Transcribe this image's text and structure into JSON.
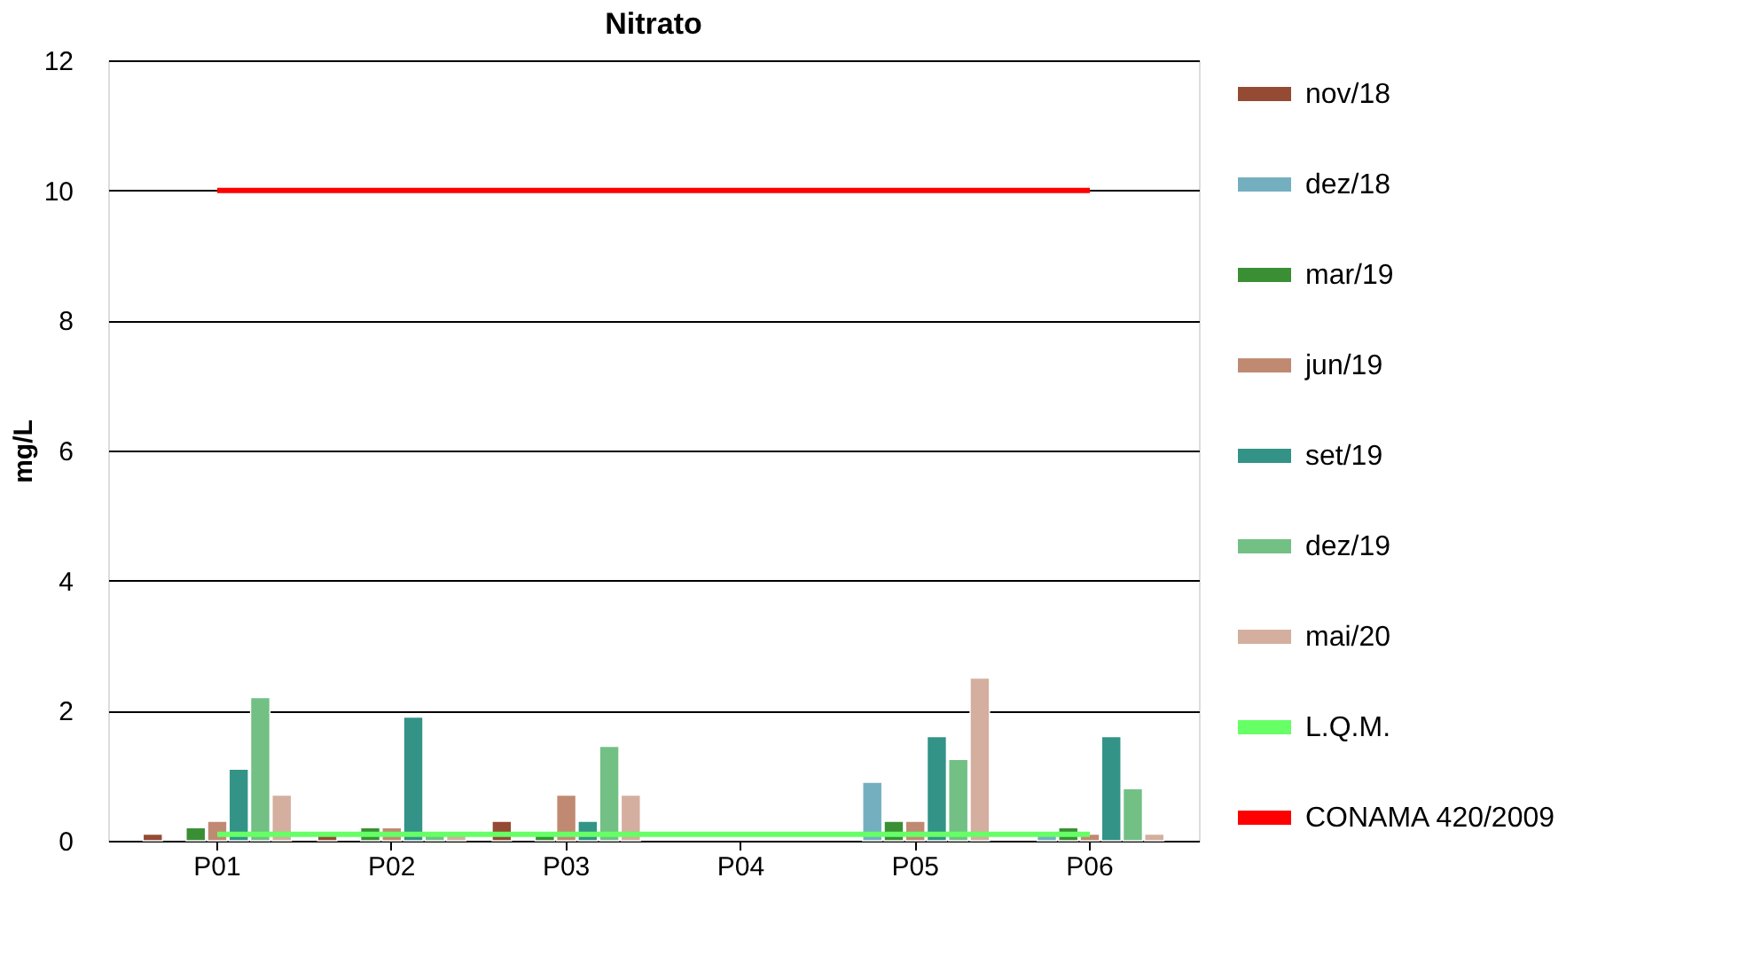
{
  "chart_data": {
    "type": "bar",
    "title": "Nitrato",
    "ylabel": "mg/L",
    "categories": [
      "P01",
      "P02",
      "P03",
      "P04",
      "P05",
      "P06"
    ],
    "series": [
      {
        "name": "nov/18",
        "color": "#954a33",
        "values": [
          0.1,
          0.1,
          0.3,
          null,
          null,
          null
        ]
      },
      {
        "name": "dez/18",
        "color": "#74afc0",
        "values": [
          null,
          null,
          null,
          null,
          0.9,
          0.1
        ]
      },
      {
        "name": "mar/19",
        "color": "#3a8f34",
        "values": [
          0.2,
          0.2,
          0.1,
          null,
          0.3,
          0.2
        ]
      },
      {
        "name": "jun/19",
        "color": "#c08a72",
        "values": [
          0.3,
          0.2,
          0.7,
          null,
          0.3,
          0.1
        ]
      },
      {
        "name": "set/19",
        "color": "#339387",
        "values": [
          1.1,
          1.9,
          0.3,
          null,
          1.6,
          1.6
        ]
      },
      {
        "name": "dez/19",
        "color": "#72c084",
        "values": [
          2.2,
          0.1,
          1.45,
          null,
          1.25,
          0.8
        ]
      },
      {
        "name": "mai/20",
        "color": "#d4ae9e",
        "values": [
          0.7,
          0.1,
          0.7,
          null,
          2.5,
          0.1
        ]
      },
      {
        "name": "L.Q.M.",
        "type": "line",
        "color": "#66ff66",
        "values": [
          0.1,
          0.1,
          0.1,
          0.1,
          0.1,
          0.1
        ]
      },
      {
        "name": "CONAMA 420/2009",
        "type": "line",
        "color": "#ff0000",
        "values": [
          10,
          10,
          10,
          10,
          10,
          10
        ]
      }
    ],
    "ylim": [
      0,
      12
    ],
    "yticks": [
      0,
      2,
      4,
      6,
      8,
      10,
      12
    ],
    "grid": "y",
    "legend": "right"
  }
}
